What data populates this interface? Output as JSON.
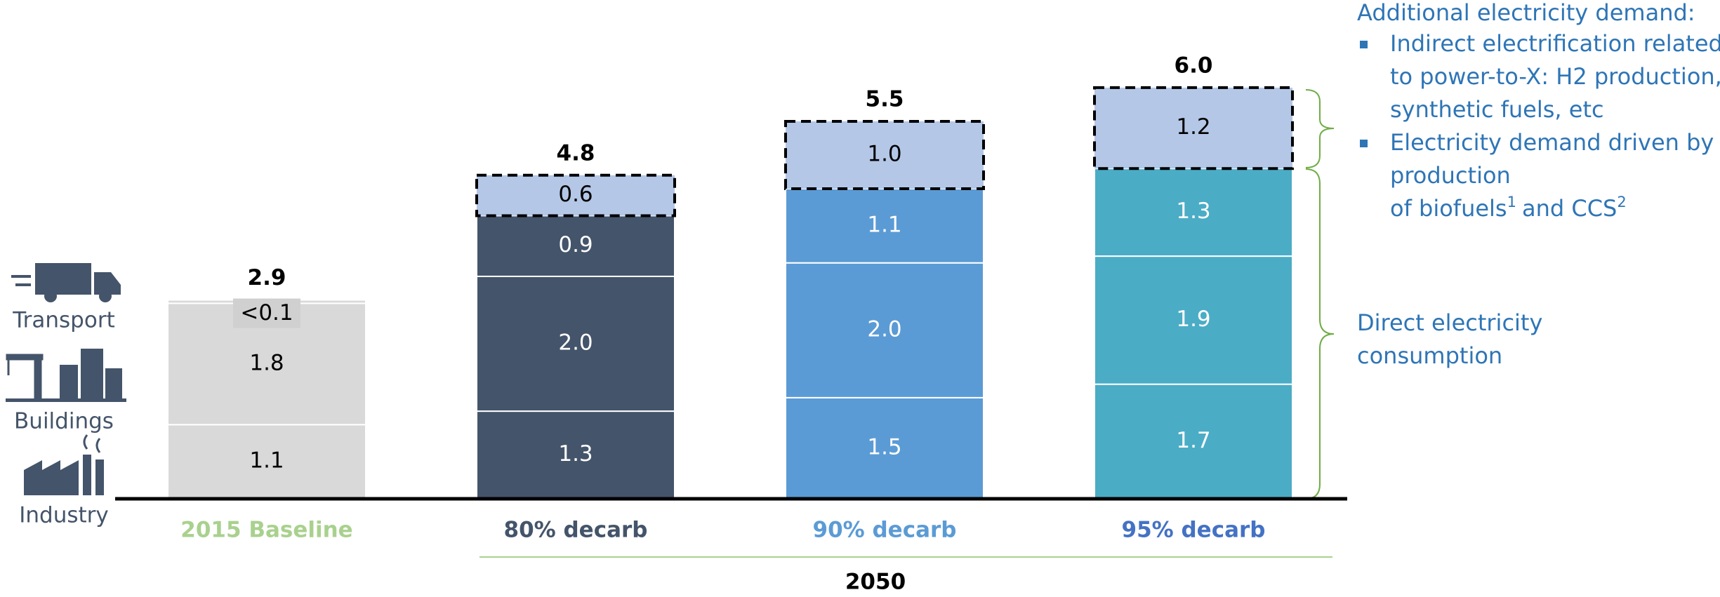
{
  "chart_data": {
    "type": "stacked_bar",
    "categories": [
      "2015 Baseline",
      "80% decarb",
      "90% decarb",
      "95% decarb"
    ],
    "category_colors": [
      "#a9d18e",
      "#44546a",
      "#5b9bd5",
      "#4472c4"
    ],
    "bar_colors": [
      "#d9d9d9",
      "#44546a",
      "#5b9bd5",
      "#4bacc6"
    ],
    "group_label": "2050",
    "ylim": [
      0,
      7.4
    ],
    "series": [
      {
        "name": "Industry",
        "values": [
          1.1,
          1.3,
          1.5,
          1.7
        ],
        "value_labels": [
          "1.1",
          "1.3",
          "1.5",
          "1.7"
        ]
      },
      {
        "name": "Buildings",
        "values": [
          1.8,
          2.0,
          2.0,
          1.9
        ],
        "value_labels": [
          "1.8",
          "2.0",
          "2.0",
          "1.9"
        ]
      },
      {
        "name": "Transport",
        "values": [
          0.05,
          0.9,
          1.1,
          1.3
        ],
        "value_labels": [
          "<0.1",
          "0.9",
          "1.1",
          "1.3"
        ]
      },
      {
        "color": "#b4c7e7",
        "dashed": true,
        "values": [
          null,
          0.6,
          1.0,
          1.2
        ],
        "value_labels": [
          null,
          "0.6",
          "1.0",
          "1.2"
        ]
      }
    ],
    "totals": [
      2.9,
      4.8,
      5.5,
      6.0
    ],
    "total_labels": [
      "2.9",
      "4.8",
      "5.5",
      "6.0"
    ],
    "annotation": {
      "heading": "Additional electricity demand:",
      "bullets": [
        [
          "Indirect electrification related",
          "to power-to-X: H2 production,",
          "synthetic fuels, etc"
        ],
        [
          "Electricity demand driven by",
          "production",
          [
            "of biofuels",
            "1",
            "and CCS",
            "2"
          ]
        ]
      ],
      "direct": [
        "Direct electricity",
        "consumption"
      ]
    }
  }
}
